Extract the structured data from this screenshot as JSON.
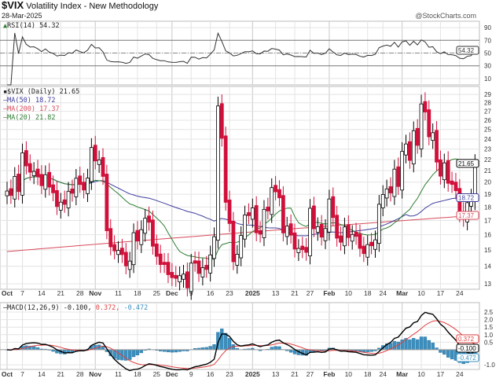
{
  "header": {
    "symbol": "$VIX",
    "name": "Volatility Index - New Methodology",
    "date": "28-Mar-2025",
    "brand": "@StockCharts.com"
  },
  "legends": {
    "rsi": "RSI(14) 54.32",
    "price": "$VIX (Daily) 21.65",
    "ma50": "MA(50) 18.72",
    "ma200": "MA(200) 17.37",
    "ma20": "MA(20) 21.82",
    "macd_label": "MACD(12,26,9) -0.100,",
    "macd_signal": " 0.372,",
    "macd_hist": " -0.472"
  },
  "colors": {
    "up": "#000000",
    "down": "#d0103a",
    "ma50": "#3c3c9c",
    "ma200": "#d84a5a",
    "ma20": "#2e7d32",
    "hist": "#3a8fbf",
    "signal": "#e04040"
  },
  "chart_data": [
    {
      "type": "candlestick",
      "title": "$VIX (Daily)",
      "scale": "log",
      "ylim": [
        12.7,
        30
      ],
      "yticks": [
        13,
        14,
        15,
        16,
        17,
        18,
        19,
        20,
        21,
        22,
        23,
        24,
        25,
        26,
        27,
        28,
        29
      ],
      "last_values": {
        "close": "21.65",
        "ma50": "18.72",
        "ma200": "17.37",
        "ma20": "21.82"
      },
      "ma200_range": [
        14.9,
        17.37
      ],
      "grid": true,
      "close": [
        19.26,
        18.9,
        20.49,
        19.21,
        22.64,
        21.42,
        20.86,
        20.93,
        20.46,
        19.7,
        20.64,
        19.58,
        19.11,
        18.03,
        18.37,
        18.2,
        19.24,
        19.08,
        20.33,
        19.8,
        19.34,
        20.35,
        23.16,
        21.88,
        21.98,
        20.49,
        16.27,
        15.2,
        14.94,
        14.97,
        14.71,
        14.02,
        14.31,
        16.14,
        15.58,
        16.35,
        17.16,
        16.87,
        15.24,
        14.6,
        14.1,
        14.1,
        13.51,
        13.34,
        13.3,
        13.45,
        13.54,
        12.77,
        14.19,
        14.18,
        13.58,
        13.92,
        13.81,
        14.69,
        15.87,
        27.62,
        24.09,
        18.36,
        16.78,
        14.27,
        14.73,
        15.95,
        17.4,
        17.35,
        17.93,
        16.13,
        16.04,
        17.82,
        17.7,
        19.54,
        19.19,
        18.71,
        16.12,
        16.6,
        15.97,
        15.06,
        15.1,
        15.02,
        14.85,
        17.9,
        16.41,
        16.56,
        15.84,
        16.43,
        18.62,
        17.21,
        15.77,
        15.5,
        16.54,
        15.81,
        16.02,
        15.89,
        15.1,
        14.77,
        15.35,
        15.27,
        15.66,
        18.21,
        18.98,
        19.43,
        19.1,
        21.13,
        19.63,
        22.78,
        23.51,
        21.93,
        24.87,
        23.37,
        27.86,
        26.92,
        24.23,
        24.66,
        21.77,
        20.51,
        21.7,
        19.9,
        19.8,
        19.28,
        17.48,
        17.15,
        18.33,
        18.69,
        21.65
      ]
    },
    {
      "type": "line",
      "title": "RSI(14)",
      "ylim": [
        0,
        100
      ],
      "yticks": [
        10,
        30,
        50,
        70,
        90
      ],
      "last_value": "54.32"
    },
    {
      "type": "bar",
      "title": "MACD(12,26,9)",
      "ylim": [
        -1.31,
        3.13
      ],
      "yticks": [
        "2.5",
        "2.0",
        "1.5",
        "1.0",
        "0.5",
        "-1.0"
      ],
      "last_values": {
        "macd": "-0.100",
        "signal": "0.372",
        "hist": "-0.472"
      }
    }
  ],
  "xaxis": {
    "ticks": [
      {
        "label": "Oct",
        "i": 0,
        "bold": true
      },
      {
        "label": "7",
        "i": 4
      },
      {
        "label": "14",
        "i": 9
      },
      {
        "label": "21",
        "i": 14
      },
      {
        "label": "28",
        "i": 19
      },
      {
        "label": "Nov",
        "i": 23,
        "bold": true
      },
      {
        "label": "11",
        "i": 29
      },
      {
        "label": "18",
        "i": 34
      },
      {
        "label": "25",
        "i": 39
      },
      {
        "label": "Dec",
        "i": 43,
        "bold": true
      },
      {
        "label": "9",
        "i": 48
      },
      {
        "label": "16",
        "i": 53
      },
      {
        "label": "23",
        "i": 58
      },
      {
        "label": "2025",
        "i": 64,
        "bold": true
      },
      {
        "label": "13",
        "i": 70
      },
      {
        "label": "21",
        "i": 75
      },
      {
        "label": "27",
        "i": 79
      },
      {
        "label": "Feb",
        "i": 84,
        "bold": true
      },
      {
        "label": "10",
        "i": 89
      },
      {
        "label": "18",
        "i": 94
      },
      {
        "label": "24",
        "i": 98
      },
      {
        "label": "Mar",
        "i": 103,
        "bold": true
      },
      {
        "label": "10",
        "i": 108
      },
      {
        "label": "17",
        "i": 113
      },
      {
        "label": "24",
        "i": 118
      }
    ]
  }
}
